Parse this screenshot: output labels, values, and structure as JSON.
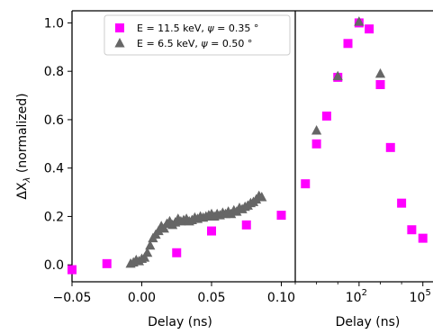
{
  "chart_data": [
    {
      "type": "scatter",
      "panel": "linear delay",
      "xlim": [
        -0.05,
        0.11
      ],
      "ylim": [
        -0.07,
        1.05
      ],
      "xticks": [
        -0.05,
        0.0,
        0.05,
        0.1
      ],
      "xtick_labels": [
        "−0.05",
        "0.00",
        "0.05",
        "0.10"
      ],
      "yticks": [
        0.0,
        0.2,
        0.4,
        0.6,
        0.8,
        1.0
      ],
      "ytick_labels": [
        "0.0",
        "0.2",
        "0.4",
        "0.6",
        "0.8",
        "1.0"
      ],
      "xlabel": "Delay (ns)",
      "ylabel": "ΔX",
      "ylabel_sub": "λ",
      "ylabel_suffix": " (normalized)",
      "grid": false,
      "legend_position": "top-right",
      "legend": [
        {
          "parts": [
            "E = 11.5 keV, ",
            "ψ",
            " = 0.35 °"
          ],
          "marker": "square",
          "color": "#ff00ff"
        },
        {
          "parts": [
            "E = 6.5 keV, ",
            "ψ",
            " = 0.50 °"
          ],
          "marker": "triangle",
          "color": "#666666"
        }
      ],
      "series": [
        {
          "name": "E = 11.5 keV, ψ = 0.35 °",
          "marker": "square",
          "color": "#ff00ff",
          "x": [
            -0.05,
            -0.025,
            0.025,
            0.05,
            0.075,
            0.1
          ],
          "y": [
            -0.02,
            0.005,
            0.05,
            0.14,
            0.165,
            0.205
          ]
        },
        {
          "name": "E = 6.5 keV, ψ = 0.50 °",
          "marker": "triangle",
          "color": "#666666",
          "x": [
            -0.008,
            -0.006,
            -0.004,
            -0.002,
            0.0,
            0.002,
            0.004,
            0.006,
            0.008,
            0.01,
            0.012,
            0.014,
            0.016,
            0.018,
            0.02,
            0.022,
            0.024,
            0.026,
            0.028,
            0.03,
            0.032,
            0.034,
            0.036,
            0.038,
            0.04,
            0.042,
            0.044,
            0.046,
            0.048,
            0.05,
            0.052,
            0.054,
            0.056,
            0.058,
            0.06,
            0.062,
            0.064,
            0.066,
            0.068,
            0.07,
            0.072,
            0.074,
            0.076,
            0.078,
            0.08,
            0.082,
            0.084,
            0.086
          ],
          "y": [
            0.005,
            0.01,
            0.02,
            0.015,
            0.025,
            0.03,
            0.05,
            0.08,
            0.11,
            0.125,
            0.14,
            0.16,
            0.15,
            0.17,
            0.18,
            0.165,
            0.175,
            0.19,
            0.18,
            0.185,
            0.19,
            0.18,
            0.185,
            0.195,
            0.19,
            0.2,
            0.195,
            0.2,
            0.205,
            0.21,
            0.2,
            0.21,
            0.205,
            0.215,
            0.21,
            0.22,
            0.21,
            0.225,
            0.22,
            0.235,
            0.23,
            0.24,
            0.245,
            0.255,
            0.26,
            0.27,
            0.285,
            0.28
          ]
        }
      ]
    },
    {
      "type": "scatter",
      "panel": "log delay",
      "xscale": "log",
      "xlim": [
        0.1,
        300000
      ],
      "ylim": [
        -0.07,
        1.05
      ],
      "xticks": [
        100,
        100000
      ],
      "xtick_labels": [
        {
          "base": "10",
          "exp": "2"
        },
        {
          "base": "10",
          "exp": "5"
        }
      ],
      "xlabel": "Delay (ns)",
      "grid": false,
      "series": [
        {
          "name": "E = 11.5 keV, ψ = 0.35 °",
          "marker": "square",
          "color": "#ff00ff",
          "x": [
            0.3,
            1,
            3,
            10,
            30,
            100,
            300,
            1000,
            3000,
            10000,
            30000,
            100000
          ],
          "y": [
            0.335,
            0.5,
            0.615,
            0.775,
            0.915,
            1.0,
            0.975,
            0.745,
            0.485,
            0.255,
            0.145,
            0.11
          ]
        },
        {
          "name": "E = 6.5 keV, ψ = 0.50 °",
          "marker": "triangle",
          "color": "#666666",
          "x": [
            1,
            10,
            100,
            1000
          ],
          "y": [
            0.555,
            0.78,
            1.005,
            0.79
          ]
        }
      ]
    }
  ]
}
